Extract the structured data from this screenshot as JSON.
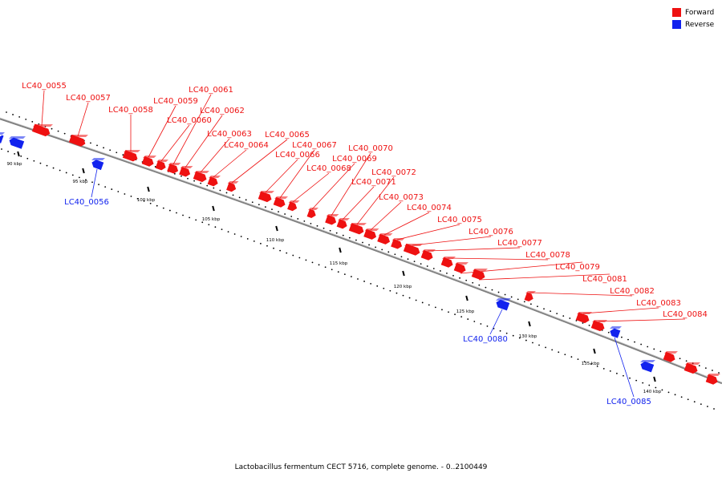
{
  "legend": {
    "forward": {
      "label": "Forward",
      "color": "#ee1111"
    },
    "reverse": {
      "label": "Reverse",
      "color": "#1122ee"
    }
  },
  "caption": "Lactobacillus fermentum CECT 5716, complete genome. - 0..2100449",
  "colors": {
    "forward": "#ee1111",
    "reverse": "#1122ee",
    "backbone": "#808080"
  },
  "ticks": [
    "90 kbp",
    "95 kbp",
    "100 kbp",
    "105 kbp",
    "110 kbp",
    "115 kbp",
    "120 kbp",
    "125 kbp",
    "130 kbp",
    "135 kbp",
    "140 kbp"
  ],
  "genes": [
    {
      "label": "LC40_0055",
      "strand": "forward"
    },
    {
      "label": "LC40_0056",
      "strand": "reverse"
    },
    {
      "label": "LC40_0057",
      "strand": "forward"
    },
    {
      "label": "LC40_0058",
      "strand": "forward"
    },
    {
      "label": "LC40_0059",
      "strand": "forward"
    },
    {
      "label": "LC40_0060",
      "strand": "forward"
    },
    {
      "label": "LC40_0061",
      "strand": "forward"
    },
    {
      "label": "LC40_0062",
      "strand": "forward"
    },
    {
      "label": "LC40_0063",
      "strand": "forward"
    },
    {
      "label": "LC40_0064",
      "strand": "forward"
    },
    {
      "label": "LC40_0065",
      "strand": "forward"
    },
    {
      "label": "LC40_0066",
      "strand": "forward"
    },
    {
      "label": "LC40_0067",
      "strand": "forward"
    },
    {
      "label": "LC40_0068",
      "strand": "forward"
    },
    {
      "label": "LC40_0069",
      "strand": "forward"
    },
    {
      "label": "LC40_0070",
      "strand": "forward"
    },
    {
      "label": "LC40_0071",
      "strand": "forward"
    },
    {
      "label": "LC40_0072",
      "strand": "forward"
    },
    {
      "label": "LC40_0073",
      "strand": "forward"
    },
    {
      "label": "LC40_0074",
      "strand": "forward"
    },
    {
      "label": "LC40_0075",
      "strand": "forward"
    },
    {
      "label": "LC40_0076",
      "strand": "forward"
    },
    {
      "label": "LC40_0077",
      "strand": "forward"
    },
    {
      "label": "LC40_0078",
      "strand": "forward"
    },
    {
      "label": "LC40_0079",
      "strand": "forward"
    },
    {
      "label": "LC40_0080",
      "strand": "reverse"
    },
    {
      "label": "LC40_0081",
      "strand": "forward"
    },
    {
      "label": "LC40_0082",
      "strand": "forward"
    },
    {
      "label": "LC40_0083",
      "strand": "forward"
    },
    {
      "label": "LC40_0084",
      "strand": "forward"
    },
    {
      "label": "LC40_0085",
      "strand": "reverse"
    }
  ]
}
